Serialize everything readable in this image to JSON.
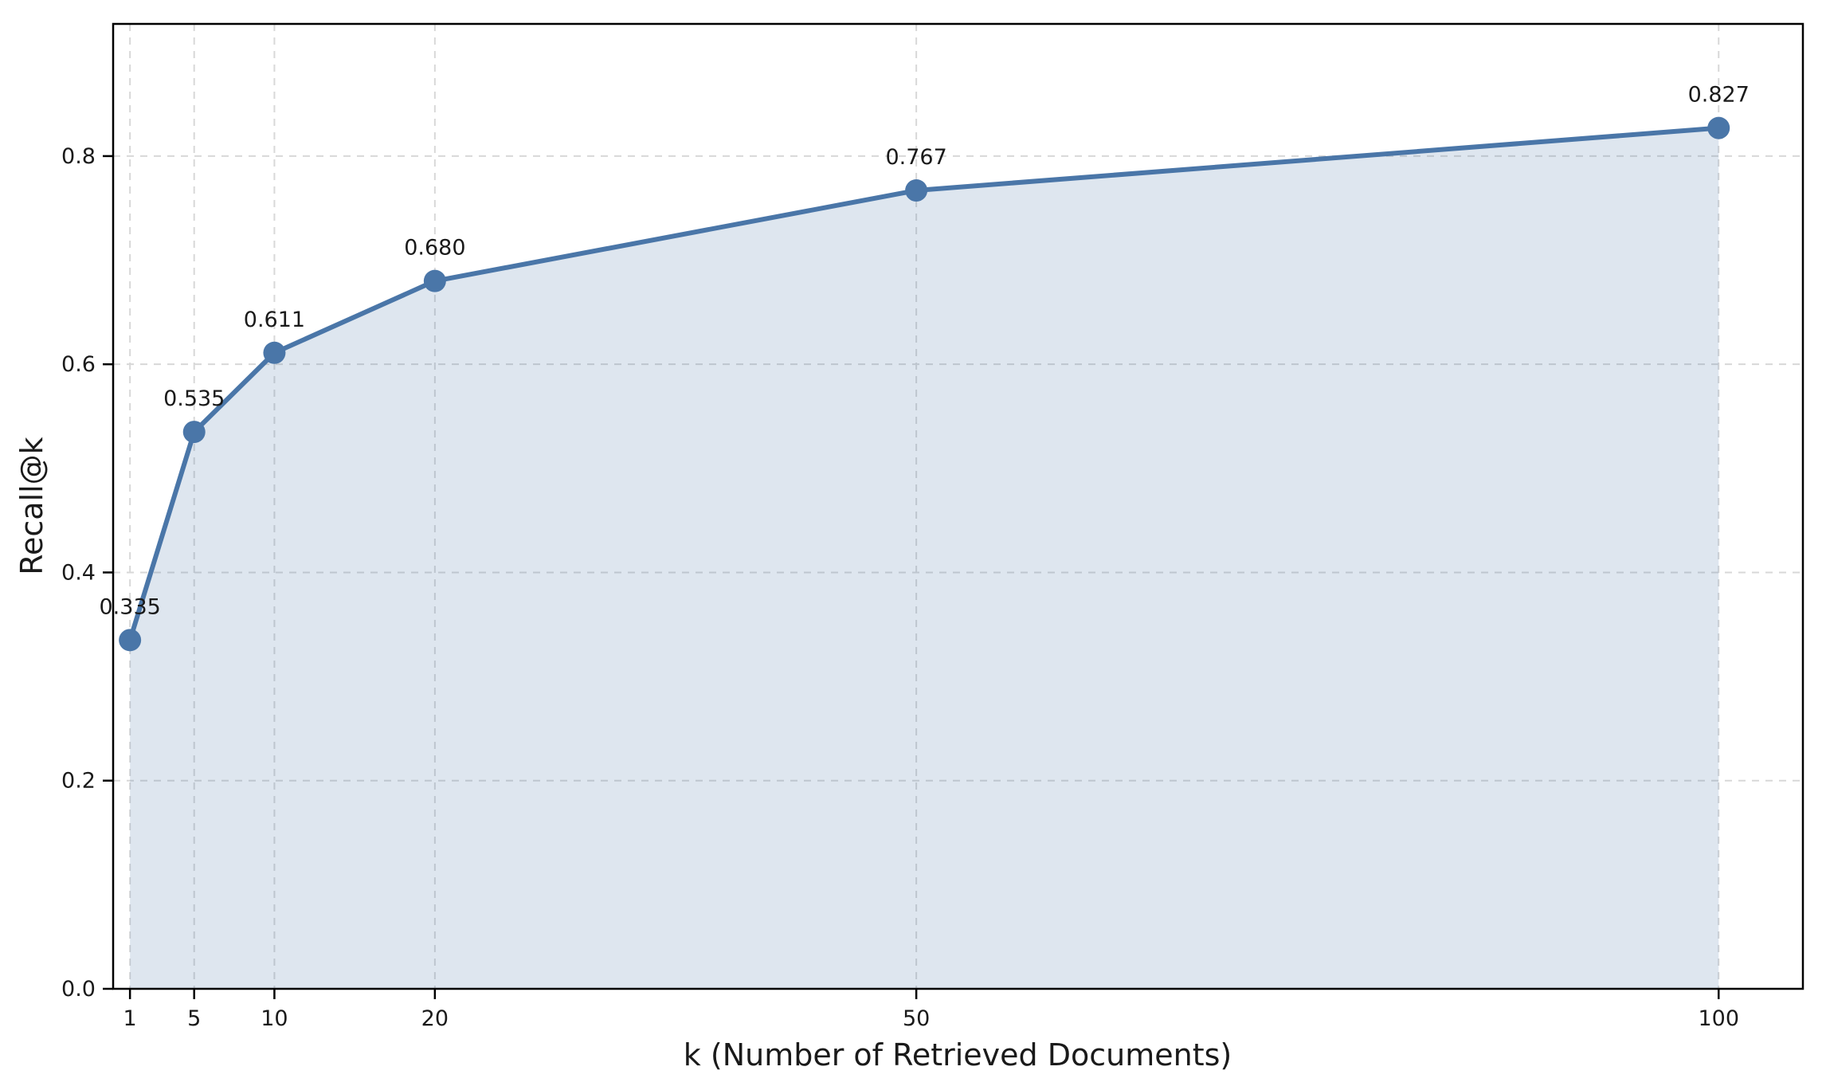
{
  "chart_data": {
    "type": "line",
    "title": "",
    "xlabel": "k (Number of Retrieved Documents)",
    "ylabel": "Recall@k",
    "x": [
      1,
      5,
      10,
      20,
      50,
      100
    ],
    "y": [
      0.335,
      0.535,
      0.611,
      0.68,
      0.767,
      0.827
    ],
    "point_labels": [
      "0.335",
      "0.535",
      "0.611",
      "0.680",
      "0.767",
      "0.827"
    ],
    "x_tick_labels": [
      "1",
      "5",
      "10",
      "20",
      "50",
      "100"
    ],
    "x_tick_values": [
      1,
      5,
      10,
      20,
      50,
      100
    ],
    "y_tick_labels": [
      "0.0",
      "0.2",
      "0.4",
      "0.6",
      "0.8"
    ],
    "y_tick_values": [
      0.0,
      0.2,
      0.4,
      0.6,
      0.8
    ],
    "xlim": [
      -0.05,
      105.25
    ],
    "ylim": [
      0,
      0.927
    ],
    "x_scale": "linear",
    "grid": true,
    "grid_style": "dashed",
    "fill_under_line": true,
    "legend": "none",
    "colors": {
      "line": "#4a76a8",
      "marker": "#4a76a8",
      "fill": "rgba(74, 118, 168, 0.18)",
      "grid": "#d8d8d8",
      "spine": "#000000",
      "text": "#1a1a1a",
      "background": "#ffffff"
    }
  }
}
